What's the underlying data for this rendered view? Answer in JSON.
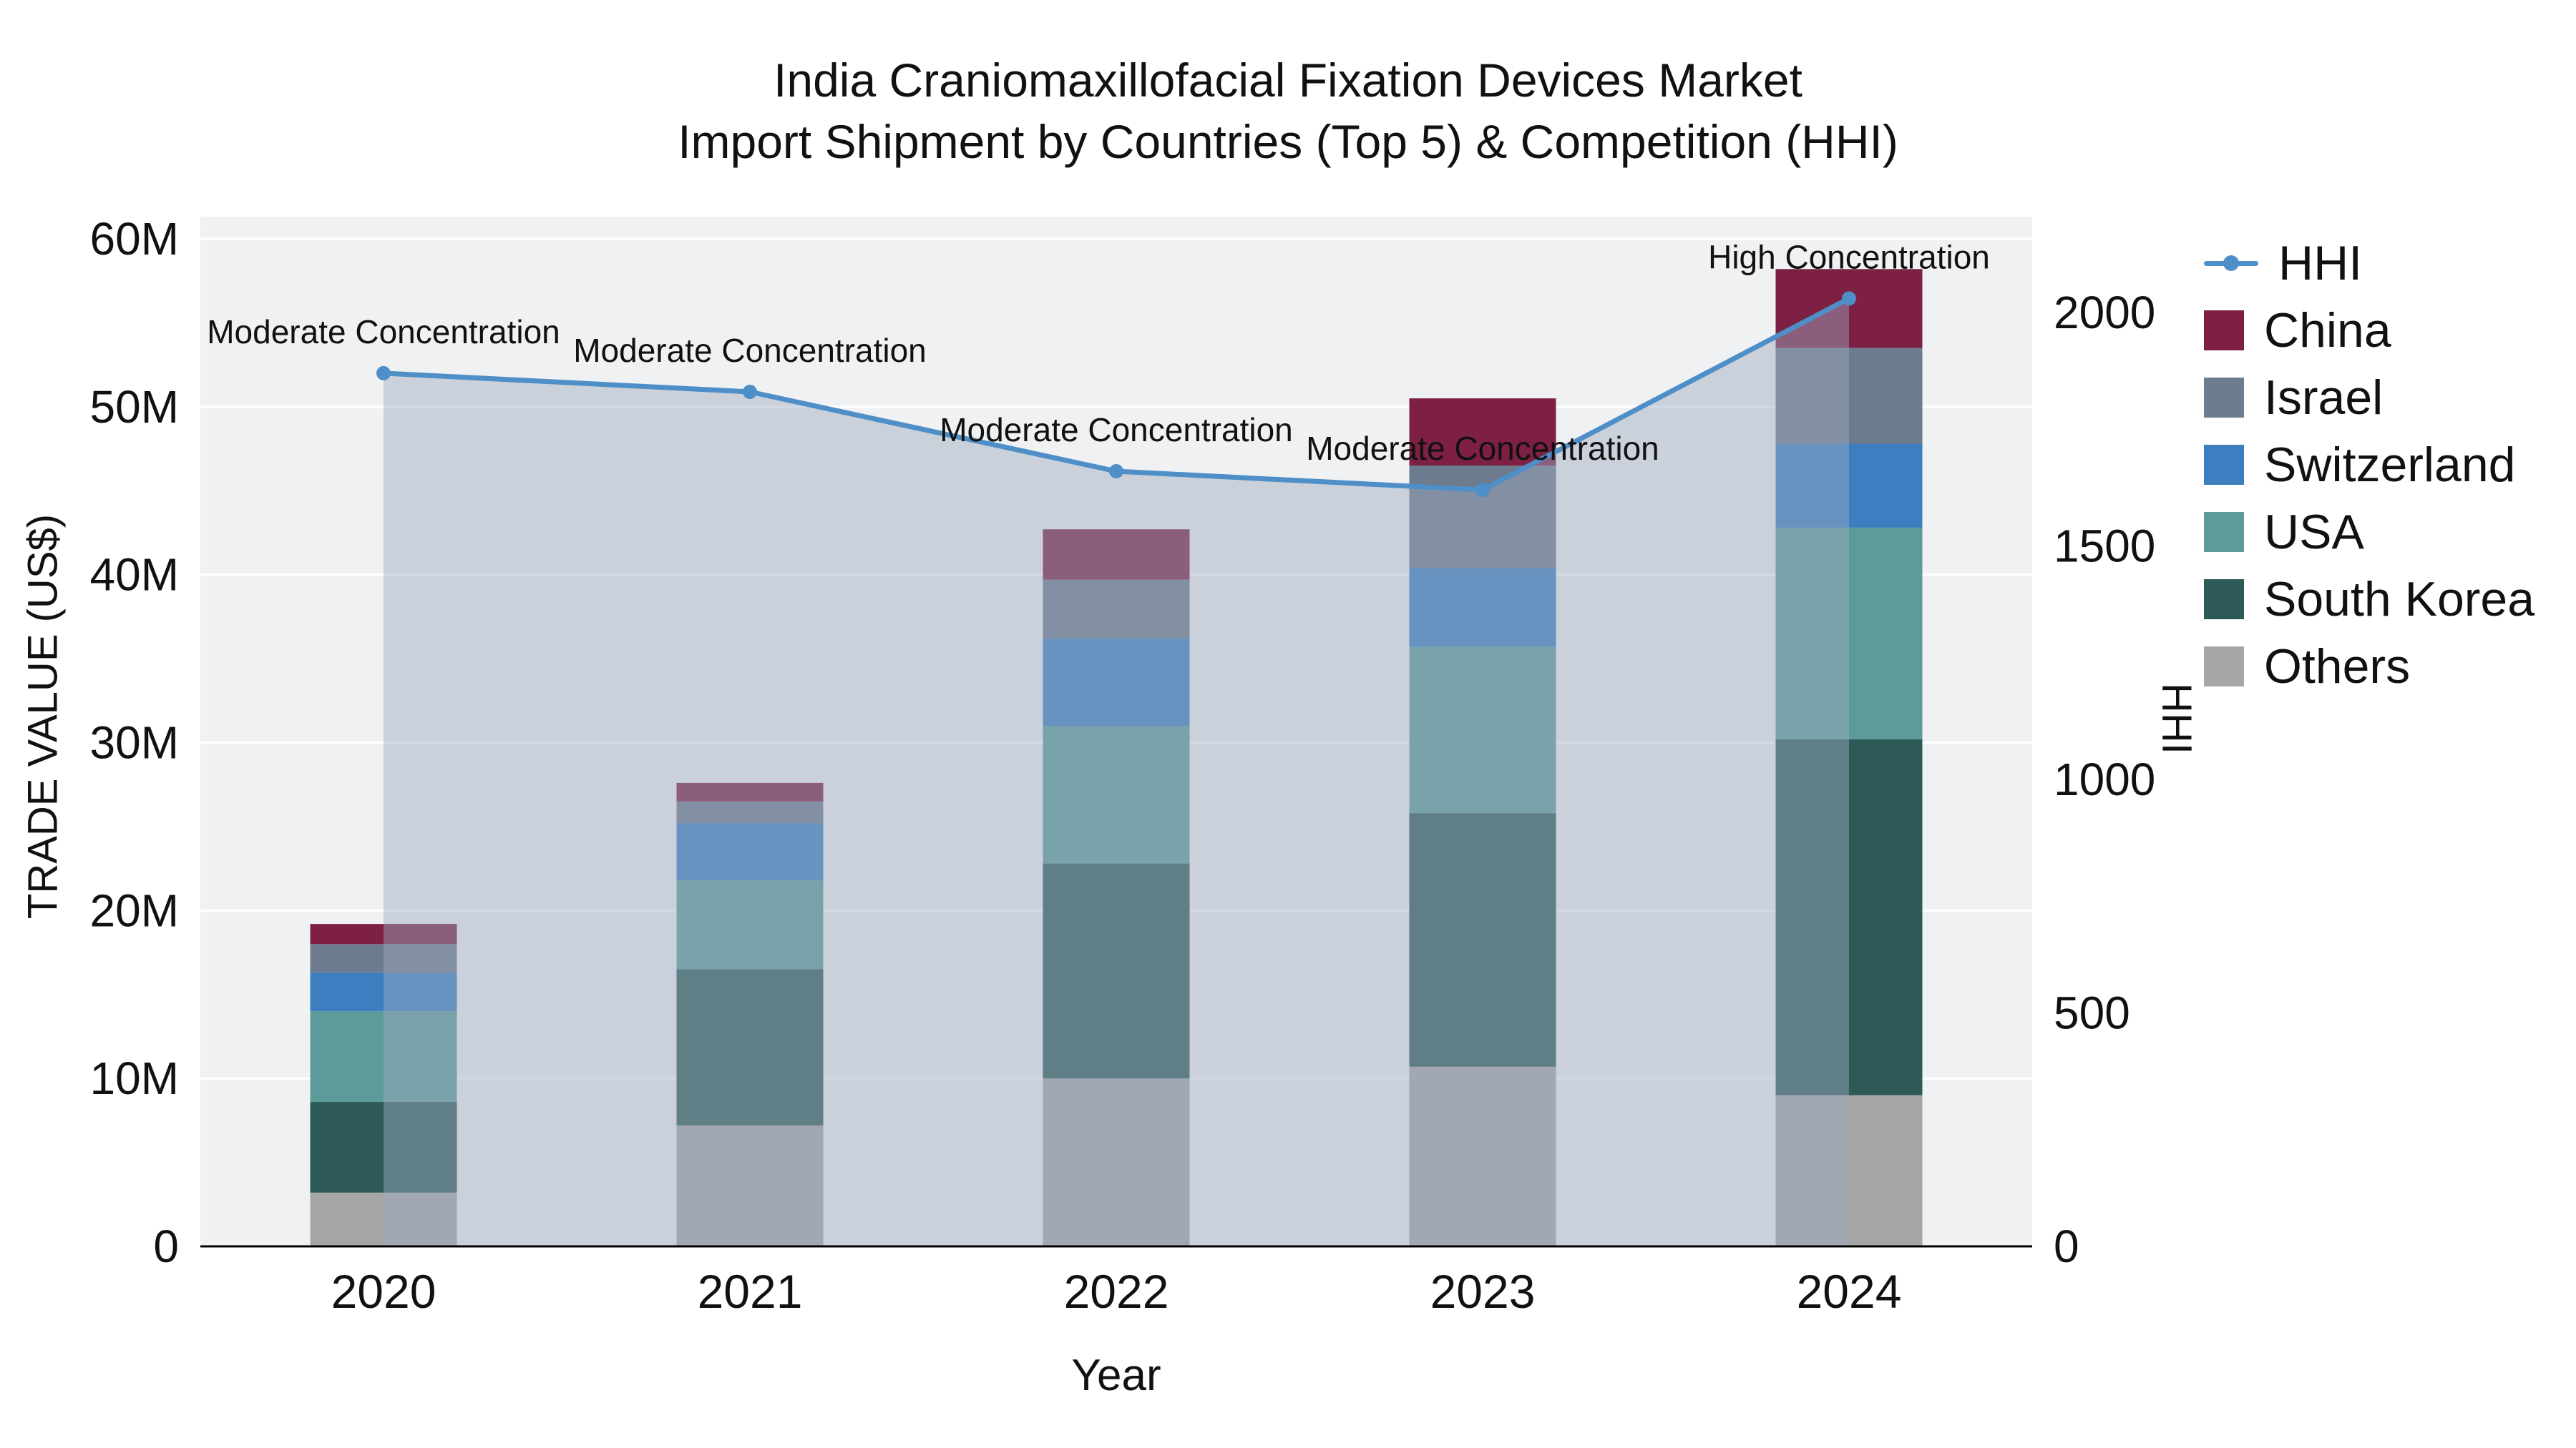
{
  "title": {
    "line1": "India Craniomaxillofacial Fixation Devices Market",
    "line2": "Import Shipment by Countries (Top 5) & Competition (HHI)"
  },
  "axes": {
    "x_label": "Year",
    "y_left_label": "TRADE VALUE (US$)",
    "y_right_label": "HHI"
  },
  "colors": {
    "background": "#ffffff",
    "plot_bg": "#f0f1f3",
    "grid": "#ffffff",
    "axis_line": "#000000",
    "text": "#111111",
    "area_fill": "rgba(158,170,190,0.45)"
  },
  "legend": [
    {
      "label": "HHI",
      "type": "line",
      "color": "#4e8fc7"
    },
    {
      "label": "China",
      "type": "square",
      "color": "#7d2044"
    },
    {
      "label": "Israel",
      "type": "square",
      "color": "#6d7b8e"
    },
    {
      "label": "Switzerland",
      "type": "square",
      "color": "#3c7ebf"
    },
    {
      "label": "USA",
      "type": "square",
      "color": "#5d9b9b"
    },
    {
      "label": "South Korea",
      "type": "square",
      "color": "#2d5a57"
    },
    {
      "label": "Others",
      "type": "square",
      "color": "#a6a6a6"
    }
  ],
  "chart_data": {
    "type": "bar",
    "subtype": "stacked-bars-with-hhi-line-and-area",
    "title": "India Craniomaxillofacial Fixation Devices Market Import Shipment by Countries (Top 5) & Competition (HHI)",
    "xlabel": "Year",
    "ylabel_left": "TRADE VALUE (US$)",
    "ylabel_right": "HHI",
    "categories": [
      "2020",
      "2021",
      "2022",
      "2023",
      "2024"
    ],
    "value_unit": "million US$",
    "stack_order_bottom_to_top": [
      "Others",
      "South Korea",
      "USA",
      "Switzerland",
      "Israel",
      "China"
    ],
    "series": [
      {
        "name": "Others",
        "color": "#a6a6a6",
        "values": [
          3.2,
          7.2,
          10.0,
          10.7,
          9.0
        ]
      },
      {
        "name": "South Korea",
        "color": "#2d5a57",
        "values": [
          5.4,
          9.3,
          12.8,
          15.1,
          21.2
        ]
      },
      {
        "name": "USA",
        "color": "#5d9b9b",
        "values": [
          5.4,
          5.3,
          8.2,
          9.9,
          12.6
        ]
      },
      {
        "name": "Switzerland",
        "color": "#3c7ebf",
        "values": [
          2.3,
          3.4,
          5.2,
          4.7,
          5.0
        ]
      },
      {
        "name": "Israel",
        "color": "#6d7b8e",
        "values": [
          1.7,
          1.3,
          3.5,
          6.1,
          5.7
        ]
      },
      {
        "name": "China",
        "color": "#7d2044",
        "values": [
          1.2,
          1.1,
          3.0,
          4.0,
          4.7
        ]
      }
    ],
    "totals": [
      19.2,
      27.6,
      42.7,
      50.5,
      58.2
    ],
    "hhi": {
      "name": "HHI",
      "color": "#4e8fc7",
      "values": [
        1870,
        1830,
        1660,
        1620,
        2030
      ],
      "annotations": [
        "Moderate Concentration",
        "Moderate Concentration",
        "Moderate Concentration",
        "Moderate Concentration",
        "High Concentration"
      ]
    },
    "y_left_axis": {
      "min": 0,
      "max": 60,
      "ticks": [
        {
          "value": 0,
          "label": "0"
        },
        {
          "value": 10,
          "label": "10M"
        },
        {
          "value": 20,
          "label": "20M"
        },
        {
          "value": 30,
          "label": "30M"
        },
        {
          "value": 40,
          "label": "40M"
        },
        {
          "value": 50,
          "label": "50M"
        },
        {
          "value": 60,
          "label": "60M"
        }
      ]
    },
    "y_right_axis": {
      "min": 0,
      "max_tick": 2000,
      "ticks": [
        {
          "value": 0,
          "label": "0"
        },
        {
          "value": 500,
          "label": "500"
        },
        {
          "value": 1000,
          "label": "1000"
        },
        {
          "value": 1500,
          "label": "1500"
        },
        {
          "value": 2000,
          "label": "2000"
        }
      ]
    },
    "legend_position": "right",
    "grid": "horizontal"
  }
}
